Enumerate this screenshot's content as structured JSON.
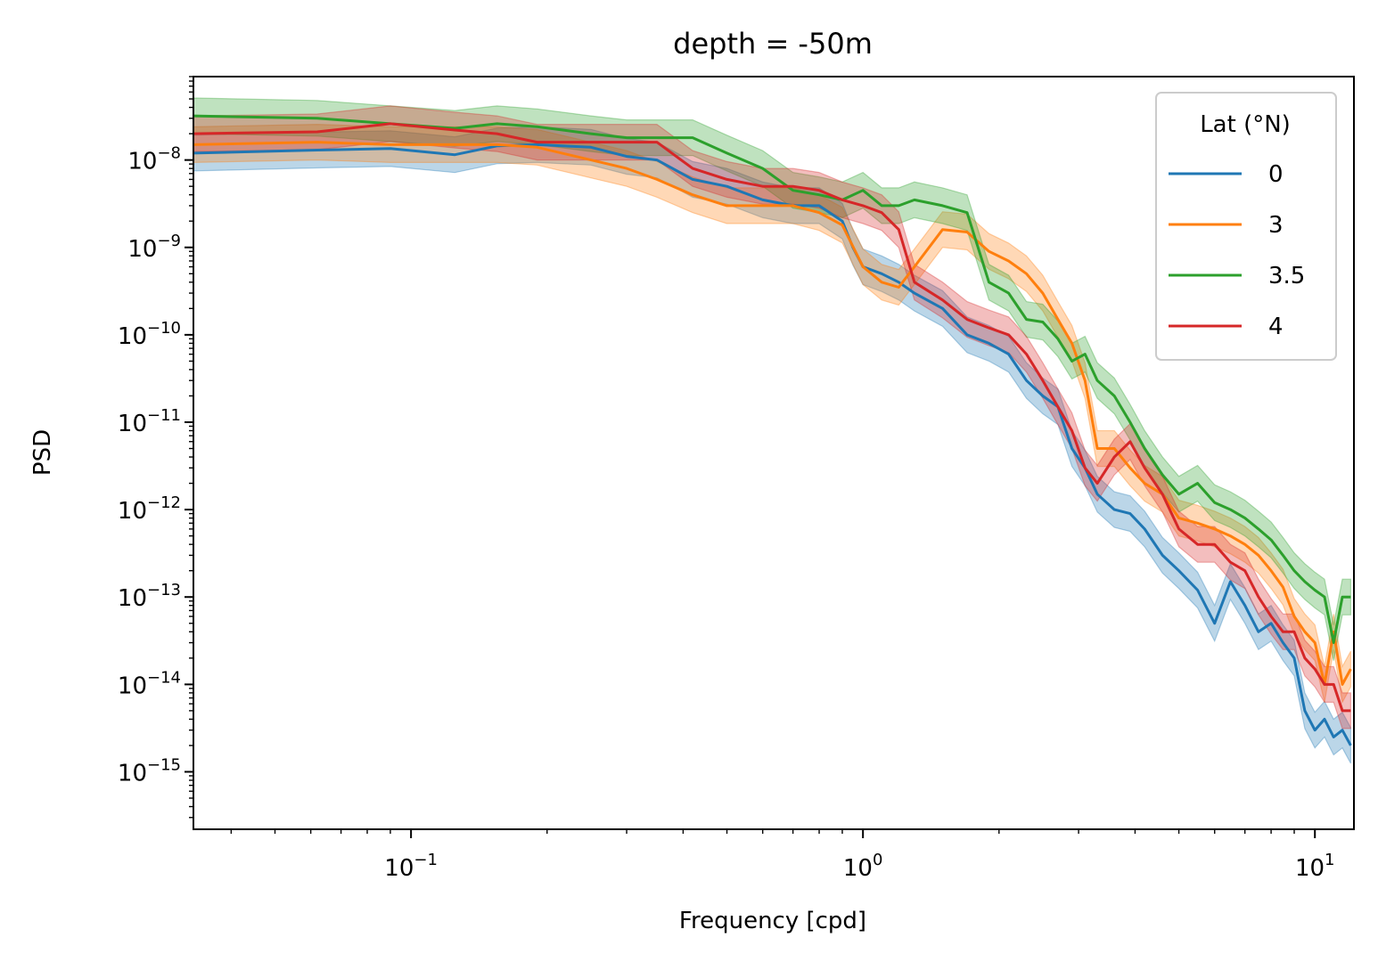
{
  "chart_data": {
    "type": "line",
    "title": "depth = -50m",
    "xlabel": "Frequency [cpd]",
    "ylabel": "PSD",
    "xscale": "log",
    "yscale": "log",
    "xlim": [
      0.033,
      12.2
    ],
    "ylim": [
      2.2e-16,
      9e-08
    ],
    "grid": false,
    "x_ticks": [
      {
        "value": 0.1,
        "base": "10",
        "exp": "−1"
      },
      {
        "value": 1,
        "base": "10",
        "exp": "0"
      },
      {
        "value": 10,
        "base": "10",
        "exp": "1"
      }
    ],
    "y_ticks": [
      {
        "value": 1e-08,
        "base": "10",
        "exp": "−8"
      },
      {
        "value": 1e-09,
        "base": "10",
        "exp": "−9"
      },
      {
        "value": 1e-10,
        "base": "10",
        "exp": "−10"
      },
      {
        "value": 1e-11,
        "base": "10",
        "exp": "−11"
      },
      {
        "value": 1e-12,
        "base": "10",
        "exp": "−12"
      },
      {
        "value": 1e-13,
        "base": "10",
        "exp": "−13"
      },
      {
        "value": 1e-14,
        "base": "10",
        "exp": "−14"
      },
      {
        "value": 1e-15,
        "base": "10",
        "exp": "−15"
      }
    ],
    "legend": {
      "title": "Lat (°N)",
      "position": "top-right"
    },
    "band_factor": 1.6,
    "series": [
      {
        "name": "0",
        "color": "#1f77b4",
        "x": [
          0.033,
          0.062,
          0.09,
          0.125,
          0.155,
          0.19,
          0.25,
          0.3,
          0.35,
          0.42,
          0.5,
          0.6,
          0.7,
          0.8,
          0.9,
          0.95,
          1.0,
          1.1,
          1.2,
          1.3,
          1.5,
          1.7,
          1.9,
          2.1,
          2.3,
          2.5,
          2.7,
          2.9,
          3.1,
          3.3,
          3.6,
          3.9,
          4.2,
          4.6,
          5.0,
          5.5,
          6.0,
          6.5,
          7.0,
          7.5,
          8.0,
          8.5,
          9.0,
          9.5,
          10.0,
          10.5,
          11.0,
          11.5,
          12.0
        ],
        "y": [
          1.2e-08,
          1.3e-08,
          1.35e-08,
          1.15e-08,
          1.45e-08,
          1.5e-08,
          1.4e-08,
          1.1e-08,
          1e-08,
          6e-09,
          5e-09,
          3.5e-09,
          3e-09,
          3e-09,
          2e-09,
          1e-09,
          6e-10,
          5e-10,
          4e-10,
          3e-10,
          2e-10,
          1e-10,
          8e-11,
          6e-11,
          3e-11,
          2e-11,
          1.5e-11,
          5e-12,
          3e-12,
          1.5e-12,
          1e-12,
          9e-13,
          6e-13,
          3e-13,
          2e-13,
          1.2e-13,
          5e-14,
          1.5e-13,
          8e-14,
          4e-14,
          5e-14,
          3e-14,
          2e-14,
          5e-15,
          3e-15,
          4e-15,
          2.5e-15,
          3e-15,
          2e-15
        ]
      },
      {
        "name": "3",
        "color": "#ff7f0e",
        "x": [
          0.033,
          0.062,
          0.09,
          0.125,
          0.155,
          0.19,
          0.25,
          0.3,
          0.35,
          0.42,
          0.5,
          0.6,
          0.7,
          0.8,
          0.9,
          1.0,
          1.1,
          1.2,
          1.3,
          1.5,
          1.7,
          1.9,
          2.1,
          2.3,
          2.5,
          2.7,
          2.9,
          3.1,
          3.3,
          3.6,
          3.9,
          4.2,
          4.6,
          5.0,
          5.5,
          6.0,
          6.5,
          7.0,
          7.5,
          8.0,
          8.5,
          9.0,
          9.5,
          10.0,
          10.5,
          11.0,
          11.5,
          12.0
        ],
        "y": [
          1.5e-08,
          1.6e-08,
          1.5e-08,
          1.5e-08,
          1.5e-08,
          1.4e-08,
          1e-08,
          8e-09,
          6e-09,
          4e-09,
          3e-09,
          3e-09,
          3e-09,
          2.5e-09,
          1.8e-09,
          6e-10,
          4e-10,
          3.5e-10,
          6e-10,
          1.6e-09,
          1.5e-09,
          9e-10,
          7e-10,
          5e-10,
          3e-10,
          1.5e-10,
          8e-11,
          3e-11,
          5e-12,
          5e-12,
          3e-12,
          2e-12,
          1.5e-12,
          8e-13,
          7e-13,
          6e-13,
          5e-13,
          4e-13,
          3e-13,
          2e-13,
          1.3e-13,
          6e-14,
          4e-14,
          3e-14,
          1e-14,
          4e-14,
          1e-14,
          1.5e-14
        ]
      },
      {
        "name": "3.5",
        "color": "#2ca02c",
        "x": [
          0.033,
          0.062,
          0.09,
          0.125,
          0.155,
          0.19,
          0.25,
          0.3,
          0.35,
          0.42,
          0.5,
          0.6,
          0.7,
          0.8,
          0.9,
          1.0,
          1.1,
          1.2,
          1.3,
          1.5,
          1.7,
          1.9,
          2.1,
          2.3,
          2.5,
          2.7,
          2.9,
          3.1,
          3.3,
          3.6,
          3.9,
          4.2,
          4.6,
          5.0,
          5.5,
          6.0,
          6.5,
          7.0,
          7.5,
          8.0,
          8.5,
          9.0,
          9.5,
          10.0,
          10.5,
          11.0,
          11.5,
          12.0
        ],
        "y": [
          3.2e-08,
          3e-08,
          2.6e-08,
          2.3e-08,
          2.6e-08,
          2.4e-08,
          2e-08,
          1.8e-08,
          1.8e-08,
          1.8e-08,
          1.2e-08,
          8e-09,
          4.5e-09,
          4e-09,
          3.5e-09,
          4.5e-09,
          3e-09,
          3e-09,
          3.5e-09,
          3e-09,
          2.5e-09,
          4e-10,
          3e-10,
          1.5e-10,
          1.4e-10,
          9e-11,
          5e-11,
          6e-11,
          3e-11,
          2e-11,
          1e-11,
          5e-12,
          2.5e-12,
          1.5e-12,
          2e-12,
          1.2e-12,
          1e-12,
          8e-13,
          6e-13,
          4.5e-13,
          3e-13,
          2e-13,
          1.5e-13,
          1.2e-13,
          1e-13,
          3e-14,
          1e-13,
          1e-13
        ]
      },
      {
        "name": "4",
        "color": "#d62728",
        "x": [
          0.033,
          0.062,
          0.09,
          0.125,
          0.155,
          0.19,
          0.25,
          0.3,
          0.35,
          0.42,
          0.5,
          0.6,
          0.7,
          0.8,
          0.9,
          1.0,
          1.1,
          1.2,
          1.3,
          1.5,
          1.7,
          1.9,
          2.1,
          2.3,
          2.5,
          2.7,
          2.9,
          3.1,
          3.3,
          3.6,
          3.9,
          4.2,
          4.6,
          5.0,
          5.5,
          6.0,
          6.5,
          7.0,
          7.5,
          8.0,
          8.5,
          9.0,
          9.5,
          10.0,
          10.5,
          11.0,
          11.5,
          12.0
        ],
        "y": [
          2e-08,
          2.1e-08,
          2.6e-08,
          2.2e-08,
          2e-08,
          1.6e-08,
          1.6e-08,
          1.6e-08,
          1.6e-08,
          8e-09,
          6e-09,
          5e-09,
          5e-09,
          4.5e-09,
          3.5e-09,
          3e-09,
          2.5e-09,
          1.6e-09,
          4e-10,
          2.5e-10,
          1.5e-10,
          1.2e-10,
          1e-10,
          6e-11,
          3e-11,
          1.5e-11,
          8e-12,
          3e-12,
          2e-12,
          4e-12,
          6e-12,
          3e-12,
          1.5e-12,
          6e-13,
          4e-13,
          4e-13,
          2.5e-13,
          2e-13,
          1e-13,
          6e-14,
          4e-14,
          4e-14,
          2e-14,
          1.5e-14,
          1e-14,
          1e-14,
          5e-15,
          5e-15
        ]
      }
    ]
  }
}
